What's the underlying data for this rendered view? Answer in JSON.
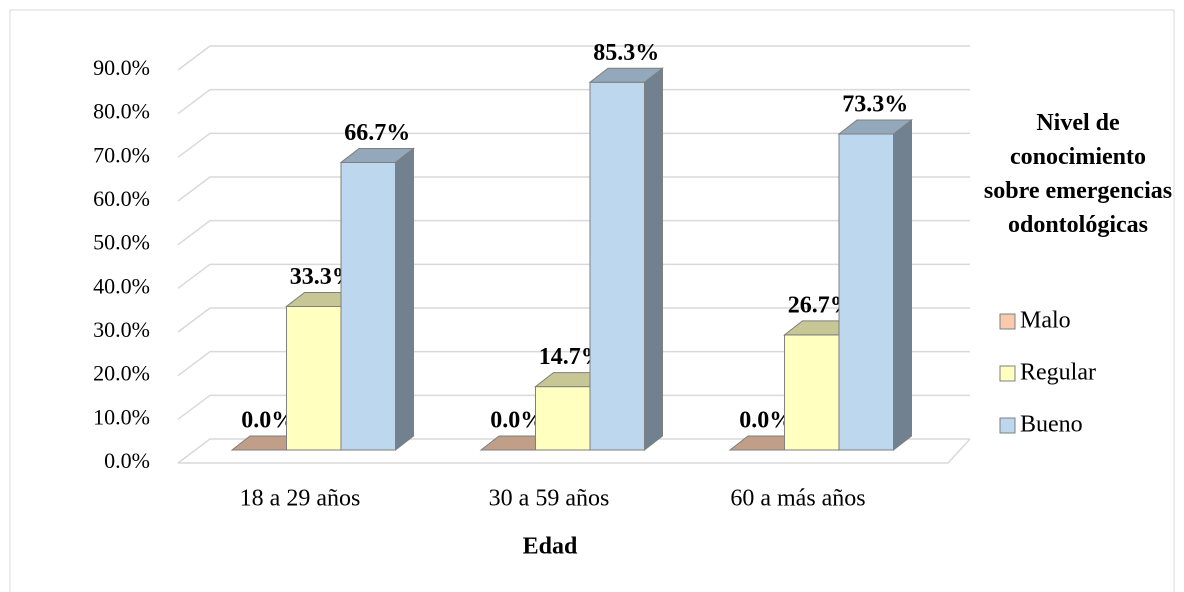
{
  "chart_data": {
    "type": "bar3d",
    "x_label": "Edad",
    "legend_title": "Nivel de conocimiento sobre emergencias odontológicas",
    "legend_position": "right",
    "categories": [
      "18 a 29 años",
      "30 a 59 años",
      "60 a más años"
    ],
    "series": [
      {
        "name": "Malo",
        "color": "#f8cbad",
        "values": [
          0,
          0,
          0
        ],
        "value_labels": [
          "0.0%",
          "0.0%",
          "0.0%"
        ]
      },
      {
        "name": "Regular",
        "color": "#ffffc0",
        "values": [
          33.3,
          14.7,
          26.7
        ],
        "value_labels": [
          "33.3%",
          "14.7%",
          "26.7%"
        ]
      },
      {
        "name": "Bueno",
        "color": "#bdd7ee",
        "values": [
          66.7,
          85.3,
          73.3
        ],
        "value_labels": [
          "66.7%",
          "85.3%",
          "73.3%"
        ]
      }
    ],
    "ylim": [
      0,
      90
    ],
    "yticks": [
      {
        "value": 0,
        "label": "0.0%"
      },
      {
        "value": 10,
        "label": "10.0%"
      },
      {
        "value": 20,
        "label": "20.0%"
      },
      {
        "value": 30,
        "label": "30.0%"
      },
      {
        "value": 40,
        "label": "40.0%"
      },
      {
        "value": 50,
        "label": "50.0%"
      },
      {
        "value": 60,
        "label": "60.0%"
      },
      {
        "value": 70,
        "label": "70.0%"
      },
      {
        "value": 80,
        "label": "80.0%"
      },
      {
        "value": 90,
        "label": "90.0%"
      }
    ],
    "grid": true
  }
}
